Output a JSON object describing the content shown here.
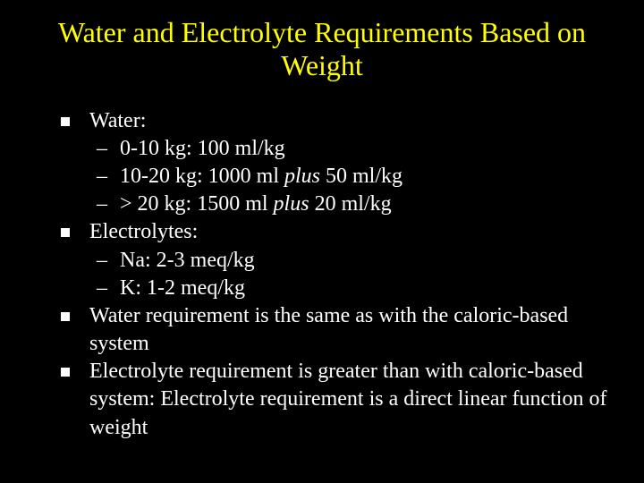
{
  "title": "Water and Electrolyte Requirements Based on Weight",
  "bullets": {
    "b0": {
      "label": "Water:"
    },
    "w0": {
      "pre": "0-10 kg: 100 ml/kg"
    },
    "w1": {
      "pre": "10-20 kg: 1000 ml ",
      "ital": "plus",
      "post": " 50 ml/kg"
    },
    "w2": {
      "pre": "> 20 kg: 1500 ml ",
      "ital": "plus",
      "post": " 20 ml/kg"
    },
    "b1": {
      "label": "Electrolytes:"
    },
    "e0": {
      "pre": "Na: 2-3 meq/kg"
    },
    "e1": {
      "pre": "K: 1-2 meq/kg"
    },
    "b2": {
      "label": "Water requirement is the same as with the caloric-based system"
    },
    "b3": {
      "label": "Electrolyte requirement is greater than with caloric-based system: Electrolyte requirement is a direct linear function of weight"
    }
  }
}
